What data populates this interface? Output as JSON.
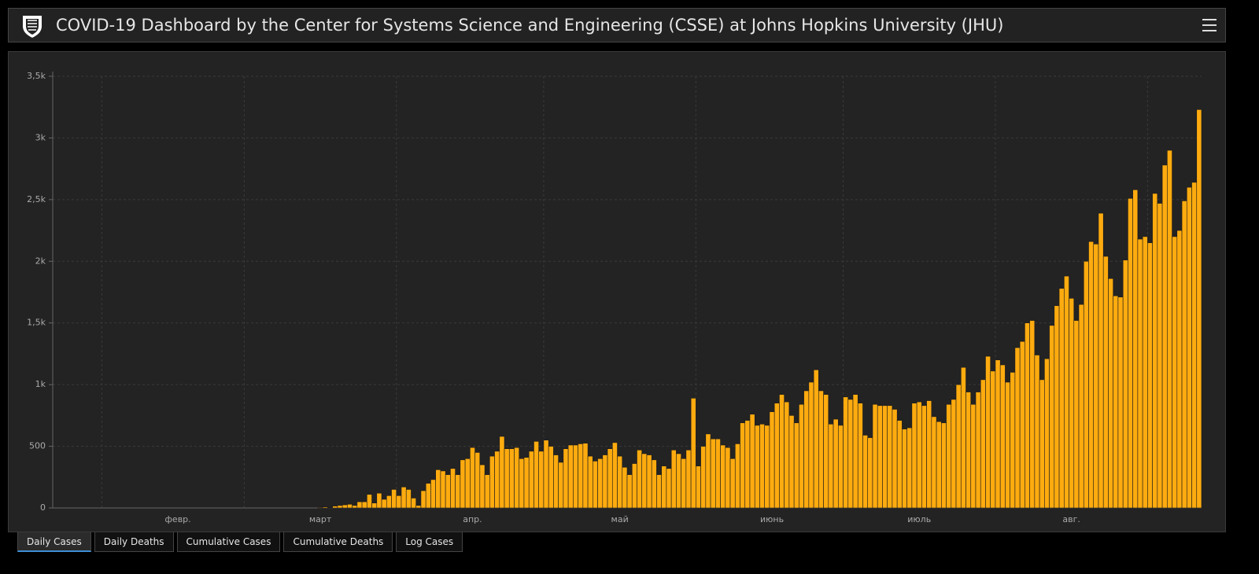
{
  "header": {
    "title": "COVID-19 Dashboard by the Center for Systems Science and Engineering (CSSE) at Johns Hopkins University (JHU)"
  },
  "tabs": [
    "Daily Cases",
    "Daily Deaths",
    "Cumulative Cases",
    "Cumulative Deaths",
    "Log Cases"
  ],
  "chart_data": {
    "type": "bar",
    "color": "#fdab0f",
    "grid": true,
    "ylim": [
      0,
      3500
    ],
    "yticks": [
      0,
      500,
      {
        "value": 1000,
        "label": "1k"
      },
      {
        "value": 1500,
        "label": "1,5k"
      },
      {
        "value": 2000,
        "label": "2k"
      },
      {
        "value": 2500,
        "label": "2,5k"
      },
      {
        "value": 3000,
        "label": "3k"
      },
      {
        "value": 3500,
        "label": "3,5k"
      }
    ],
    "categories": [
      null,
      null,
      null,
      null,
      null,
      null,
      null,
      null,
      null,
      null,
      null,
      null,
      null,
      null,
      null,
      null,
      null,
      null,
      null,
      null,
      null,
      null,
      null,
      null,
      null,
      "февр.",
      null,
      null,
      null,
      null,
      null,
      null,
      null,
      null,
      null,
      null,
      null,
      null,
      null,
      null,
      null,
      null,
      null,
      null,
      null,
      null,
      null,
      null,
      null,
      null,
      null,
      null,
      null,
      null,
      "март",
      null,
      null,
      null,
      null,
      null,
      null,
      null,
      null,
      null,
      null,
      null,
      null,
      null,
      null,
      null,
      null,
      null,
      null,
      null,
      null,
      null,
      null,
      null,
      null,
      null,
      null,
      null,
      null,
      null,
      null,
      "апр.",
      null,
      null,
      null,
      null,
      null,
      null,
      null,
      null,
      null,
      null,
      null,
      null,
      null,
      null,
      null,
      null,
      null,
      null,
      null,
      null,
      null,
      null,
      null,
      null,
      null,
      null,
      null,
      null,
      null,
      "май",
      null,
      null,
      null,
      null,
      null,
      null,
      null,
      null,
      null,
      null,
      null,
      null,
      null,
      null,
      null,
      null,
      null,
      null,
      null,
      null,
      null,
      null,
      null,
      null,
      null,
      null,
      null,
      null,
      null,
      null,
      "июнь",
      null,
      null,
      null,
      null,
      null,
      null,
      null,
      null,
      null,
      null,
      null,
      null,
      null,
      null,
      null,
      null,
      null,
      null,
      null,
      null,
      null,
      null,
      null,
      null,
      null,
      null,
      null,
      null,
      null,
      "июль",
      null,
      null,
      null,
      null,
      null,
      null,
      null,
      null,
      null,
      null,
      null,
      null,
      null,
      null,
      null,
      null,
      null,
      null,
      null,
      null,
      null,
      null,
      null,
      null,
      null,
      null,
      null,
      null,
      null,
      null,
      "авг.",
      null,
      null,
      null,
      null,
      null,
      null,
      null,
      null,
      null,
      null,
      null,
      null,
      null,
      null,
      null,
      null,
      null,
      null,
      null,
      null,
      null,
      null,
      null,
      null,
      null,
      null
    ],
    "values": [
      0,
      0,
      0,
      0,
      0,
      0,
      0,
      0,
      0,
      0,
      0,
      0,
      0,
      0,
      0,
      0,
      0,
      0,
      0,
      0,
      0,
      0,
      0,
      0,
      0,
      0,
      0,
      0,
      0,
      0,
      0,
      0,
      0,
      0,
      0,
      0,
      0,
      0,
      0,
      0,
      0,
      0,
      0,
      0,
      0,
      0,
      0,
      0,
      0,
      0,
      0,
      0,
      0,
      0,
      5,
      8,
      3,
      15,
      20,
      25,
      30,
      20,
      50,
      50,
      110,
      40,
      120,
      70,
      100,
      150,
      100,
      170,
      150,
      80,
      20,
      140,
      200,
      230,
      310,
      300,
      270,
      320,
      270,
      390,
      400,
      490,
      450,
      350,
      270,
      420,
      460,
      580,
      480,
      480,
      490,
      400,
      410,
      460,
      540,
      460,
      550,
      500,
      430,
      370,
      480,
      510,
      510,
      520,
      525,
      420,
      380,
      400,
      430,
      480,
      530,
      420,
      330,
      270,
      360,
      470,
      440,
      430,
      390,
      270,
      340,
      320,
      470,
      440,
      400,
      470,
      890,
      340,
      500,
      600,
      560,
      560,
      510,
      490,
      400,
      520,
      690,
      710,
      760,
      670,
      680,
      670,
      780,
      850,
      920,
      860,
      750,
      690,
      840,
      950,
      1020,
      1120,
      950,
      920,
      680,
      720,
      670,
      900,
      880,
      920,
      850,
      590,
      570,
      840,
      830,
      830,
      830,
      800,
      710,
      640,
      650,
      850,
      860,
      830,
      870,
      740,
      700,
      690,
      840,
      880,
      1000,
      1140,
      940,
      840,
      940,
      1040,
      1230,
      1110,
      1200,
      1160,
      1020,
      1100,
      1300,
      1350,
      1500,
      1520,
      1240,
      1040,
      1210,
      1480,
      1640,
      1780,
      1880,
      1700,
      1520,
      1650,
      2000,
      2160,
      2140,
      2390,
      2040,
      1860,
      1720,
      1710,
      2010,
      2510,
      2580,
      2180,
      2200,
      2150,
      2550,
      2470,
      2780,
      2900,
      2200,
      2250,
      2490,
      2600,
      2640,
      3230
    ]
  }
}
